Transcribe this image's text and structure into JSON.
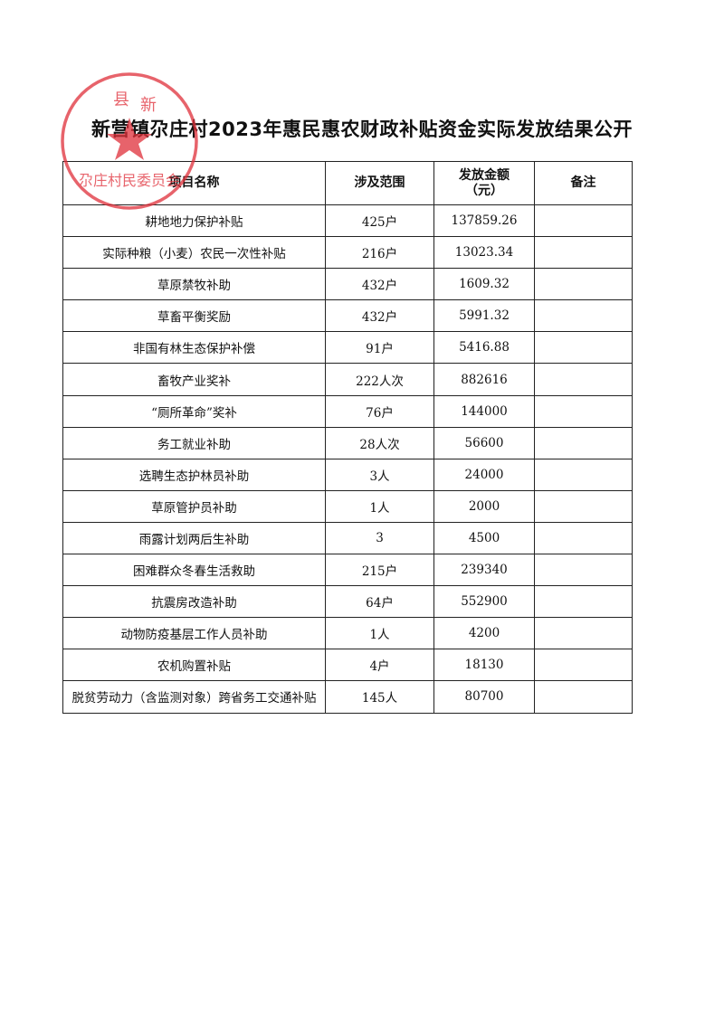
{
  "title": "新营镇尕庄村2023年惠民惠农财政补贴资金实际发放结果公开",
  "stamp": {
    "text_top": "县 新",
    "text_bottom": "尕庄村民委员会",
    "color": "#e0303a"
  },
  "table": {
    "headers": [
      "项目名称",
      "涉及范围",
      "发放金额（元）",
      "备注"
    ],
    "header_amount_line1": "发放金额",
    "header_amount_line2": "（元）",
    "rows": [
      {
        "name": "耕地地力保护补贴",
        "scope": "425户",
        "amount": "137859.26",
        "note": ""
      },
      {
        "name": "实际种粮（小麦）农民一次性补贴",
        "scope": "216户",
        "amount": "13023.34",
        "note": ""
      },
      {
        "name": "草原禁牧补助",
        "scope": "432户",
        "amount": "1609.32",
        "note": ""
      },
      {
        "name": "草畜平衡奖励",
        "scope": "432户",
        "amount": "5991.32",
        "note": ""
      },
      {
        "name": "非国有林生态保护补偿",
        "scope": "91户",
        "amount": "5416.88",
        "note": ""
      },
      {
        "name": "畜牧产业奖补",
        "scope": "222人次",
        "amount": "882616",
        "note": ""
      },
      {
        "name": "“厕所革命”奖补",
        "scope": "76户",
        "amount": "144000",
        "note": ""
      },
      {
        "name": "务工就业补助",
        "scope": "28人次",
        "amount": "56600",
        "note": ""
      },
      {
        "name": "选聘生态护林员补助",
        "scope": "3人",
        "amount": "24000",
        "note": ""
      },
      {
        "name": "草原管护员补助",
        "scope": "1人",
        "amount": "2000",
        "note": ""
      },
      {
        "name": "雨露计划两后生补助",
        "scope": "3",
        "amount": "4500",
        "note": ""
      },
      {
        "name": "困难群众冬春生活救助",
        "scope": "215户",
        "amount": "239340",
        "note": ""
      },
      {
        "name": "抗震房改造补助",
        "scope": "64户",
        "amount": "552900",
        "note": ""
      },
      {
        "name": "动物防疫基层工作人员补助",
        "scope": "1人",
        "amount": "4200",
        "note": ""
      },
      {
        "name": "农机购置补贴",
        "scope": "4户",
        "amount": "18130",
        "note": ""
      },
      {
        "name": "脱贫劳动力（含监测对象）跨省务工交通补贴",
        "scope": "145人",
        "amount": "80700",
        "note": ""
      }
    ]
  }
}
